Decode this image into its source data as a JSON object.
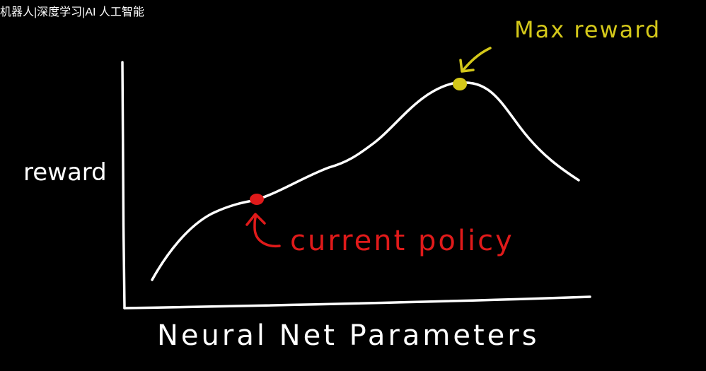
{
  "header": {
    "title": "机器人|深度学习|AI 人工智能"
  },
  "diagram": {
    "y_axis_label": "reward",
    "x_axis_label": "Neural Net Parameters",
    "current_label": "current policy",
    "max_label": "Max reward",
    "colors": {
      "background": "#000000",
      "curve": "#ffffff",
      "current": "#e01a1a",
      "max": "#d4c81a"
    }
  }
}
